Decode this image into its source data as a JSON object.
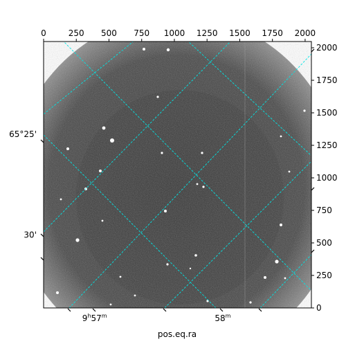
{
  "chart_data": {
    "type": "image",
    "xlabel": "pos.eq.ra",
    "ylabel": "",
    "xlim": [
      0,
      2048
    ],
    "ylim": [
      0,
      2048
    ],
    "top_x_ticks": [
      0,
      250,
      500,
      750,
      1000,
      1250,
      1500,
      1750,
      2000
    ],
    "right_y_ticks": [
      0,
      250,
      500,
      750,
      1000,
      1250,
      1500,
      1750,
      2000
    ],
    "bottom_ra_labels": [
      {
        "text": "9h57m",
        "x": 390
      },
      {
        "text": "58m",
        "x": 1370
      }
    ],
    "left_dec_labels": [
      {
        "text": "65°25'",
        "y": 1335
      },
      {
        "text": "30'",
        "y": 560
      }
    ],
    "grid": true,
    "grid_color": "#00e5e5",
    "colormap": "gray"
  }
}
